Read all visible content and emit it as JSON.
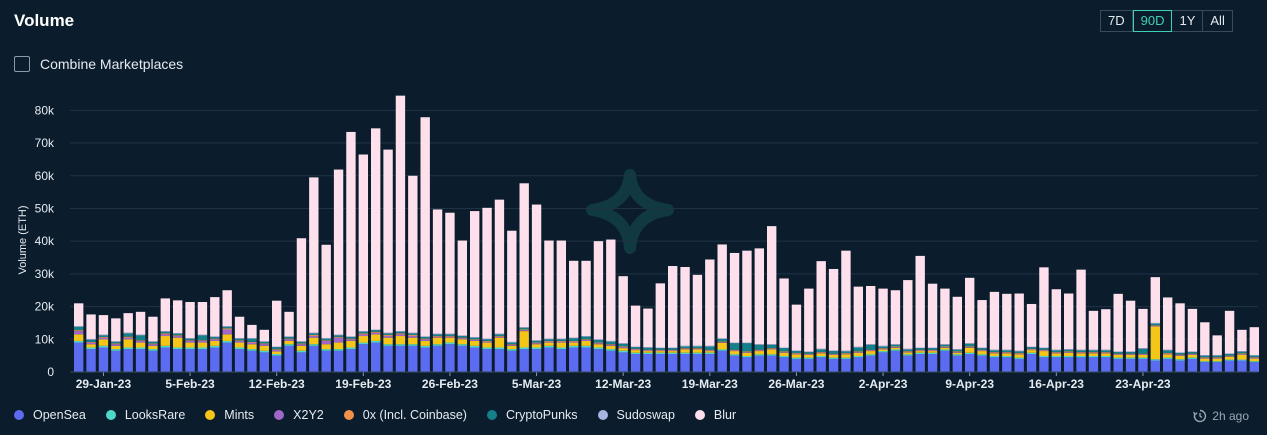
{
  "header": {
    "title": "Volume"
  },
  "range_buttons": {
    "d7": "7D",
    "d90": "90D",
    "y1": "1Y",
    "all": "All",
    "active": "90D"
  },
  "combine": {
    "label": "Combine Marketplaces",
    "checked": false
  },
  "footer": {
    "updated": "2h ago"
  },
  "colors": {
    "OpenSea": "#5b6cf0",
    "LooksRare": "#4fd8c8",
    "Mints": "#f5c518",
    "X2Y2": "#a066c8",
    "0x": "#f2924a",
    "CryptoPunks": "#14808a",
    "Sudoswap": "#a9b5e0",
    "Blur": "#fde0ec"
  },
  "chart_data": {
    "type": "bar",
    "stacked": true,
    "title": "Volume",
    "ylabel": "Volume (ETH)",
    "xlabel": "",
    "ylim": [
      0,
      85000
    ],
    "yticks": [
      "0",
      "10k",
      "20k",
      "30k",
      "40k",
      "50k",
      "60k",
      "70k",
      "80k"
    ],
    "x_tick_labels": [
      {
        "index": 2,
        "label": "29-Jan-23"
      },
      {
        "index": 9,
        "label": "5-Feb-23"
      },
      {
        "index": 16,
        "label": "12-Feb-23"
      },
      {
        "index": 23,
        "label": "19-Feb-23"
      },
      {
        "index": 30,
        "label": "26-Feb-23"
      },
      {
        "index": 37,
        "label": "5-Mar-23"
      },
      {
        "index": 44,
        "label": "12-Mar-23"
      },
      {
        "index": 51,
        "label": "19-Mar-23"
      },
      {
        "index": 58,
        "label": "26-Mar-23"
      },
      {
        "index": 65,
        "label": "2-Apr-23"
      },
      {
        "index": 72,
        "label": "9-Apr-23"
      },
      {
        "index": 79,
        "label": "16-Apr-23"
      },
      {
        "index": 86,
        "label": "23-Apr-23"
      }
    ],
    "series": [
      {
        "name": "OpenSea",
        "values": [
          9000,
          7000,
          7500,
          6500,
          7000,
          7000,
          6500,
          7500,
          7000,
          7000,
          7000,
          7500,
          9000,
          7000,
          6500,
          6000,
          5000,
          8000,
          6000,
          8000,
          6500,
          6500,
          7000,
          8500,
          9000,
          8000,
          8000,
          8000,
          7500,
          8000,
          8500,
          8000,
          7500,
          7000,
          7000,
          6500,
          7000,
          7000,
          7500,
          7000,
          7500,
          7500,
          7000,
          6500,
          6000,
          5500,
          5500,
          5500,
          5500,
          5500,
          5500,
          5500,
          6500,
          5000,
          4500,
          5000,
          5000,
          4500,
          4000,
          4000,
          4500,
          4000,
          4000,
          4500,
          5000,
          6000,
          6500,
          5000,
          5500,
          5500,
          6500,
          5000,
          5500,
          5000,
          4500,
          4500,
          4000,
          5500,
          4500,
          4500,
          4500,
          4500,
          4500,
          4500,
          4000,
          4000,
          4000,
          3500,
          4000,
          3500,
          4000,
          3000,
          3000,
          3500,
          3500,
          3000
        ]
      },
      {
        "name": "LooksRare",
        "values": [
          500,
          500,
          500,
          500,
          500,
          500,
          500,
          500,
          500,
          500,
          500,
          500,
          500,
          500,
          500,
          500,
          500,
          500,
          500,
          500,
          500,
          500,
          500,
          500,
          500,
          500,
          500,
          500,
          500,
          500,
          500,
          500,
          500,
          500,
          500,
          500,
          500,
          500,
          500,
          500,
          500,
          500,
          500,
          500,
          500,
          400,
          400,
          400,
          400,
          400,
          400,
          400,
          400,
          400,
          400,
          400,
          400,
          400,
          400,
          400,
          400,
          400,
          400,
          400,
          400,
          400,
          400,
          400,
          400,
          400,
          400,
          400,
          400,
          400,
          400,
          400,
          400,
          400,
          400,
          400,
          400,
          400,
          400,
          400,
          400,
          400,
          400,
          400,
          400,
          400,
          400,
          300,
          300,
          300,
          300,
          300
        ]
      },
      {
        "name": "Mints",
        "values": [
          2000,
          1000,
          2000,
          1000,
          2500,
          1500,
          1000,
          3000,
          3000,
          1500,
          1500,
          1500,
          2000,
          1500,
          1500,
          1500,
          800,
          1000,
          1500,
          2000,
          1500,
          2000,
          2000,
          2000,
          2000,
          2000,
          2500,
          2000,
          1500,
          2000,
          1500,
          1500,
          1500,
          1500,
          3000,
          1000,
          5000,
          1000,
          1000,
          1500,
          1000,
          1500,
          1000,
          1000,
          800,
          800,
          500,
          500,
          500,
          1000,
          1000,
          500,
          2000,
          1000,
          1000,
          1000,
          1500,
          1000,
          1000,
          800,
          800,
          800,
          1000,
          1000,
          1000,
          500,
          500,
          600,
          500,
          500,
          500,
          500,
          1500,
          1000,
          800,
          800,
          1000,
          800,
          1500,
          800,
          1000,
          800,
          800,
          800,
          800,
          800,
          800,
          10000,
          1000,
          1000,
          800,
          800,
          800,
          800,
          1500,
          800
        ]
      },
      {
        "name": "X2Y2",
        "values": [
          1000,
          500,
          500,
          500,
          500,
          500,
          500,
          500,
          500,
          500,
          500,
          500,
          1500,
          500,
          500,
          500,
          500,
          500,
          500,
          500,
          1000,
          1500,
          500,
          500,
          500,
          500,
          500,
          500,
          500,
          300,
          300,
          300,
          300,
          300,
          300,
          300,
          300,
          300,
          300,
          300,
          300,
          300,
          300,
          300,
          300,
          200,
          200,
          200,
          200,
          200,
          200,
          200,
          200,
          200,
          200,
          200,
          200,
          200,
          200,
          200,
          200,
          200,
          200,
          200,
          200,
          200,
          200,
          200,
          200,
          200,
          200,
          200,
          200,
          200,
          200,
          200,
          200,
          200,
          200,
          200,
          200,
          200,
          200,
          200,
          200,
          200,
          200,
          200,
          200,
          200,
          200,
          200,
          200,
          200,
          200,
          200
        ]
      },
      {
        "name": "0x",
        "values": [
          300,
          200,
          200,
          200,
          300,
          200,
          200,
          300,
          200,
          200,
          200,
          200,
          300,
          200,
          200,
          200,
          200,
          200,
          200,
          300,
          200,
          200,
          200,
          300,
          300,
          300,
          300,
          300,
          200,
          200,
          200,
          200,
          200,
          200,
          200,
          200,
          200,
          200,
          200,
          200,
          200,
          200,
          200,
          200,
          200,
          200,
          200,
          200,
          200,
          200,
          200,
          200,
          200,
          200,
          200,
          200,
          200,
          200,
          200,
          200,
          200,
          200,
          200,
          200,
          200,
          200,
          200,
          200,
          200,
          200,
          200,
          200,
          200,
          200,
          200,
          200,
          200,
          200,
          200,
          200,
          200,
          200,
          200,
          200,
          200,
          200,
          200,
          200,
          200,
          200,
          200,
          200,
          200,
          200,
          200,
          200
        ]
      },
      {
        "name": "CryptoPunks",
        "values": [
          1000,
          700,
          500,
          500,
          1000,
          1500,
          500,
          500,
          500,
          500,
          1500,
          500,
          500,
          500,
          1000,
          500,
          600,
          500,
          500,
          500,
          500,
          500,
          500,
          500,
          500,
          500,
          500,
          500,
          500,
          500,
          500,
          500,
          500,
          500,
          500,
          500,
          500,
          500,
          500,
          500,
          800,
          800,
          800,
          800,
          800,
          500,
          600,
          500,
          500,
          500,
          500,
          1000,
          800,
          2000,
          2500,
          1500,
          1000,
          1000,
          600,
          500,
          800,
          800,
          500,
          1200,
          1500,
          500,
          500,
          500,
          500,
          500,
          500,
          500,
          800,
          500,
          500,
          500,
          500,
          500,
          500,
          500,
          500,
          500,
          500,
          500,
          500,
          500,
          1500,
          500,
          800,
          500,
          500,
          500,
          500,
          500,
          500,
          500
        ]
      },
      {
        "name": "Sudoswap",
        "values": [
          200,
          200,
          200,
          200,
          200,
          200,
          200,
          200,
          200,
          200,
          200,
          200,
          200,
          200,
          200,
          200,
          200,
          200,
          200,
          200,
          200,
          200,
          200,
          200,
          200,
          200,
          200,
          200,
          200,
          200,
          200,
          200,
          200,
          200,
          200,
          200,
          200,
          200,
          200,
          200,
          200,
          200,
          200,
          200,
          200,
          200,
          200,
          200,
          200,
          200,
          200,
          200,
          200,
          200,
          200,
          200,
          200,
          200,
          200,
          200,
          200,
          200,
          200,
          200,
          200,
          200,
          200,
          200,
          200,
          200,
          200,
          200,
          200,
          200,
          200,
          200,
          200,
          200,
          200,
          200,
          200,
          200,
          200,
          200,
          200,
          200,
          200,
          200,
          200,
          200,
          200,
          200,
          200,
          200,
          200,
          200
        ]
      },
      {
        "name": "Blur",
        "values": [
          7000,
          7500,
          6000,
          7000,
          6000,
          7000,
          7500,
          10000,
          10000,
          11000,
          10000,
          12000,
          11000,
          6500,
          4000,
          3500,
          14000,
          7500,
          31500,
          47500,
          28500,
          50500,
          62500,
          54000,
          61500,
          56000,
          72000,
          48000,
          67000,
          38000,
          37000,
          29000,
          38500,
          40000,
          41000,
          34000,
          44000,
          41500,
          30000,
          30000,
          23500,
          23000,
          30000,
          31000,
          20500,
          12500,
          11800,
          19600,
          24900,
          24100,
          21700,
          26400,
          28700,
          27400,
          28100,
          29300,
          36100,
          21100,
          14000,
          19200,
          26800,
          24900,
          30600,
          18400,
          17800,
          17500,
          16500,
          21000,
          28000,
          19500,
          17000,
          16000,
          20000,
          14500,
          17700,
          17100,
          17500,
          13000,
          24500,
          18500,
          17000,
          24500,
          11900,
          12400,
          17600,
          15500,
          12000,
          14000,
          16000,
          15000,
          13000,
          10000,
          6000,
          13000,
          6500,
          8500
        ]
      }
    ]
  }
}
